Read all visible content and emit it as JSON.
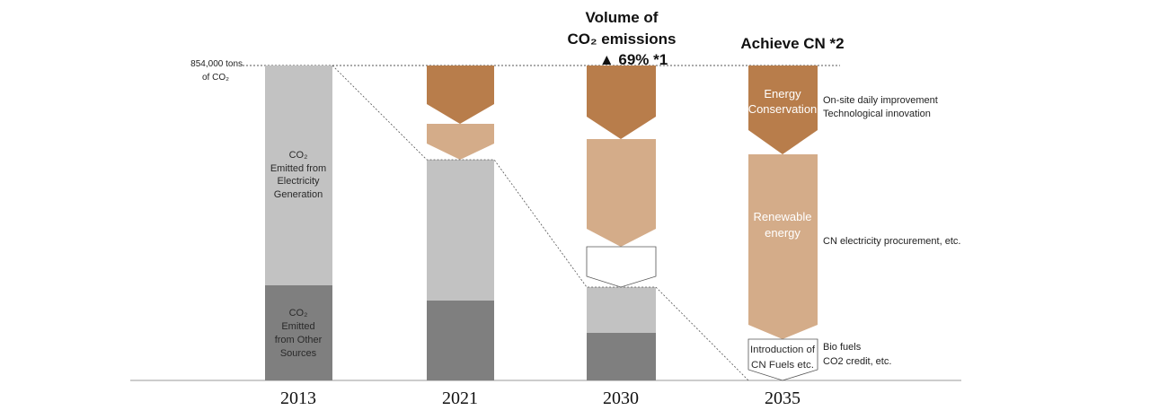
{
  "chart_data": {
    "type": "bar",
    "categories": [
      "2013",
      "2021",
      "2030",
      "2035"
    ],
    "baseline_label": [
      "854,000 tons",
      "of CO₂"
    ],
    "baseline_value": 854000,
    "ylim": [
      0,
      854000
    ],
    "segment_labels": {
      "electricity": [
        "CO₂",
        "Emitted from",
        "Electricity",
        "Generation"
      ],
      "other": [
        "CO₂",
        "Emitted",
        "from Other",
        "Sources"
      ],
      "energy_conservation": [
        "Energy",
        "Conservation"
      ],
      "renewable": [
        "Renewable",
        "energy"
      ],
      "cn_fuels": [
        "Introduction of",
        "CN Fuels etc."
      ]
    },
    "bars": [
      {
        "year": "2013",
        "other": 0.3,
        "electricity": 0.7
      },
      {
        "year": "2021",
        "other": 0.255,
        "electricity": 0.455,
        "renewable_reduction": 0.11,
        "conservation_reduction": 0.18
      },
      {
        "year": "2030",
        "other": 0.155,
        "electricity": 0.15,
        "cn_fuels_reduction": 0.12,
        "renewable_reduction": 0.35,
        "conservation_reduction": 0.23,
        "reduction_pct": 69
      },
      {
        "year": "2035",
        "other": 0,
        "electricity": 0,
        "cn_fuels_reduction": 0.13,
        "renewable_reduction": 0.59,
        "conservation_reduction": 0.28,
        "reduction_pct": 100
      }
    ],
    "headlines": {
      "y2030_line1": "Volume of",
      "y2030_line2": "CO₂ emissions",
      "y2030_line3": "▲ 69% *1",
      "y2035": "Achieve CN *2"
    },
    "notes": {
      "conservation": [
        "On-site daily improvement",
        "Technological innovation"
      ],
      "renewable": [
        "CN electricity procurement, etc."
      ],
      "fuels": [
        "Bio fuels",
        "CO2 credit, etc."
      ]
    },
    "colors": {
      "electricity": "#c2c2c2",
      "other": "#7f7f7f",
      "conservation": "#b87d4b",
      "renewable": "#d4ac89"
    }
  }
}
